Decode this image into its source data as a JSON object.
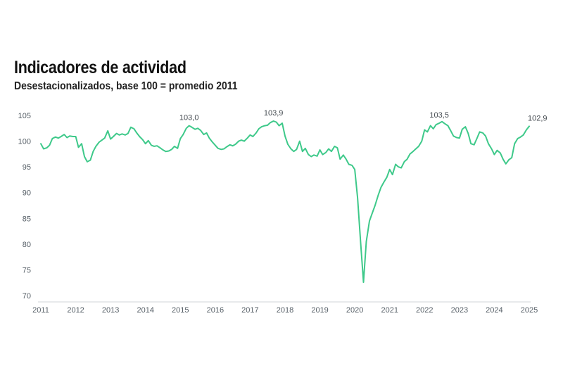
{
  "chart_data": {
    "type": "line",
    "title": "Indicadores de actividad",
    "subtitle": "Desestacionalizados, base 100 = promedio 2011",
    "xlabel": "",
    "ylabel": "",
    "xlim": [
      2011,
      2025
    ],
    "ylim": [
      70,
      105
    ],
    "x_ticks": [
      "2011",
      "2012",
      "2013",
      "2014",
      "2015",
      "2016",
      "2017",
      "2018",
      "2019",
      "2020",
      "2021",
      "2022",
      "2023",
      "2024",
      "2025"
    ],
    "y_ticks": [
      "70",
      "75",
      "80",
      "85",
      "90",
      "95",
      "100",
      "105"
    ],
    "grid": false,
    "line_color": "#3ec98a",
    "series": [
      {
        "points": [
          [
            2011.0,
            99.5
          ],
          [
            2011.08,
            98.5
          ],
          [
            2011.17,
            98.7
          ],
          [
            2011.25,
            99.2
          ],
          [
            2011.33,
            100.5
          ],
          [
            2011.42,
            100.8
          ],
          [
            2011.5,
            100.6
          ],
          [
            2011.58,
            100.9
          ],
          [
            2011.67,
            101.3
          ],
          [
            2011.75,
            100.7
          ],
          [
            2011.83,
            101.0
          ],
          [
            2011.92,
            100.9
          ],
          [
            2012.0,
            100.9
          ],
          [
            2012.08,
            98.8
          ],
          [
            2012.17,
            99.5
          ],
          [
            2012.25,
            97.0
          ],
          [
            2012.33,
            96.0
          ],
          [
            2012.42,
            96.3
          ],
          [
            2012.5,
            98.0
          ],
          [
            2012.58,
            99.0
          ],
          [
            2012.67,
            99.8
          ],
          [
            2012.75,
            100.2
          ],
          [
            2012.83,
            100.6
          ],
          [
            2012.92,
            102.0
          ],
          [
            2013.0,
            100.4
          ],
          [
            2013.08,
            100.9
          ],
          [
            2013.17,
            101.5
          ],
          [
            2013.25,
            101.2
          ],
          [
            2013.33,
            101.4
          ],
          [
            2013.42,
            101.2
          ],
          [
            2013.5,
            101.5
          ],
          [
            2013.58,
            102.7
          ],
          [
            2013.67,
            102.4
          ],
          [
            2013.75,
            101.6
          ],
          [
            2013.83,
            100.9
          ],
          [
            2013.92,
            100.3
          ],
          [
            2014.0,
            99.5
          ],
          [
            2014.08,
            100.1
          ],
          [
            2014.17,
            99.2
          ],
          [
            2014.25,
            99.0
          ],
          [
            2014.33,
            99.1
          ],
          [
            2014.42,
            98.7
          ],
          [
            2014.5,
            98.3
          ],
          [
            2014.58,
            98.0
          ],
          [
            2014.67,
            98.1
          ],
          [
            2014.75,
            98.4
          ],
          [
            2014.83,
            99.0
          ],
          [
            2014.92,
            98.6
          ],
          [
            2015.0,
            100.5
          ],
          [
            2015.08,
            101.3
          ],
          [
            2015.17,
            102.5
          ],
          [
            2015.25,
            103.0
          ],
          [
            2015.33,
            102.7
          ],
          [
            2015.42,
            102.3
          ],
          [
            2015.5,
            102.5
          ],
          [
            2015.58,
            102.1
          ],
          [
            2015.67,
            101.3
          ],
          [
            2015.75,
            101.6
          ],
          [
            2015.83,
            100.6
          ],
          [
            2015.92,
            99.8
          ],
          [
            2016.0,
            99.2
          ],
          [
            2016.08,
            98.6
          ],
          [
            2016.17,
            98.4
          ],
          [
            2016.25,
            98.5
          ],
          [
            2016.33,
            98.9
          ],
          [
            2016.42,
            99.3
          ],
          [
            2016.5,
            99.1
          ],
          [
            2016.58,
            99.4
          ],
          [
            2016.67,
            100.0
          ],
          [
            2016.75,
            100.2
          ],
          [
            2016.83,
            100.0
          ],
          [
            2016.92,
            100.6
          ],
          [
            2017.0,
            101.2
          ],
          [
            2017.08,
            100.9
          ],
          [
            2017.17,
            101.6
          ],
          [
            2017.25,
            102.4
          ],
          [
            2017.33,
            102.8
          ],
          [
            2017.42,
            103.0
          ],
          [
            2017.5,
            103.1
          ],
          [
            2017.58,
            103.6
          ],
          [
            2017.67,
            103.9
          ],
          [
            2017.75,
            103.7
          ],
          [
            2017.83,
            103.0
          ],
          [
            2017.92,
            103.5
          ],
          [
            2018.0,
            101.0
          ],
          [
            2018.08,
            99.4
          ],
          [
            2018.17,
            98.5
          ],
          [
            2018.25,
            98.0
          ],
          [
            2018.33,
            98.4
          ],
          [
            2018.42,
            100.0
          ],
          [
            2018.5,
            98.0
          ],
          [
            2018.58,
            98.6
          ],
          [
            2018.67,
            97.4
          ],
          [
            2018.75,
            97.0
          ],
          [
            2018.83,
            97.3
          ],
          [
            2018.92,
            97.1
          ],
          [
            2019.0,
            98.3
          ],
          [
            2019.08,
            97.4
          ],
          [
            2019.17,
            97.8
          ],
          [
            2019.25,
            98.5
          ],
          [
            2019.33,
            98.0
          ],
          [
            2019.42,
            99.0
          ],
          [
            2019.5,
            98.7
          ],
          [
            2019.58,
            96.5
          ],
          [
            2019.67,
            97.3
          ],
          [
            2019.75,
            96.5
          ],
          [
            2019.83,
            95.5
          ],
          [
            2019.92,
            95.3
          ],
          [
            2020.0,
            94.5
          ],
          [
            2020.08,
            89.0
          ],
          [
            2020.17,
            80.0
          ],
          [
            2020.25,
            72.6
          ],
          [
            2020.33,
            80.5
          ],
          [
            2020.42,
            84.5
          ],
          [
            2020.5,
            86.0
          ],
          [
            2020.58,
            87.5
          ],
          [
            2020.67,
            89.5
          ],
          [
            2020.75,
            91.0
          ],
          [
            2020.83,
            92.0
          ],
          [
            2020.92,
            93.0
          ],
          [
            2021.0,
            94.5
          ],
          [
            2021.08,
            93.5
          ],
          [
            2021.17,
            95.5
          ],
          [
            2021.25,
            95.0
          ],
          [
            2021.33,
            94.8
          ],
          [
            2021.42,
            96.0
          ],
          [
            2021.5,
            96.5
          ],
          [
            2021.58,
            97.5
          ],
          [
            2021.67,
            98.0
          ],
          [
            2021.75,
            98.5
          ],
          [
            2021.83,
            99.0
          ],
          [
            2021.92,
            100.0
          ],
          [
            2022.0,
            102.2
          ],
          [
            2022.08,
            101.8
          ],
          [
            2022.17,
            103.0
          ],
          [
            2022.25,
            102.4
          ],
          [
            2022.33,
            103.2
          ],
          [
            2022.42,
            103.5
          ],
          [
            2022.5,
            103.8
          ],
          [
            2022.58,
            103.4
          ],
          [
            2022.67,
            103.0
          ],
          [
            2022.75,
            102.0
          ],
          [
            2022.83,
            101.0
          ],
          [
            2022.92,
            100.7
          ],
          [
            2023.0,
            100.6
          ],
          [
            2023.08,
            102.3
          ],
          [
            2023.17,
            102.8
          ],
          [
            2023.25,
            101.5
          ],
          [
            2023.33,
            99.5
          ],
          [
            2023.42,
            99.3
          ],
          [
            2023.5,
            100.5
          ],
          [
            2023.58,
            101.8
          ],
          [
            2023.67,
            101.6
          ],
          [
            2023.75,
            101.0
          ],
          [
            2023.83,
            99.5
          ],
          [
            2023.92,
            98.5
          ],
          [
            2024.0,
            97.4
          ],
          [
            2024.08,
            98.2
          ],
          [
            2024.17,
            97.7
          ],
          [
            2024.25,
            96.5
          ],
          [
            2024.33,
            95.6
          ],
          [
            2024.42,
            96.4
          ],
          [
            2024.5,
            96.8
          ],
          [
            2024.58,
            99.5
          ],
          [
            2024.67,
            100.5
          ],
          [
            2024.75,
            100.8
          ],
          [
            2024.83,
            101.2
          ],
          [
            2024.92,
            102.2
          ],
          [
            2025.0,
            102.9
          ]
        ]
      }
    ],
    "annotations": [
      {
        "x": 2015.25,
        "y": 103.0,
        "label": "103,0"
      },
      {
        "x": 2017.67,
        "y": 103.9,
        "label": "103,9"
      },
      {
        "x": 2022.42,
        "y": 103.5,
        "label": "103,5"
      },
      {
        "x": 2025.0,
        "y": 102.9,
        "label": "102,9"
      }
    ]
  }
}
